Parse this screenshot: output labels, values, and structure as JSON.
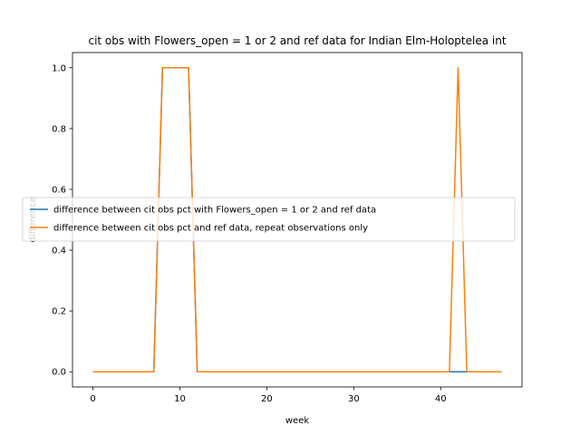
{
  "chart_data": {
    "type": "line",
    "title": "cit obs with Flowers_open = 1 or 2 and ref data for Indian Elm-Holoptelea int",
    "xlabel": "week",
    "ylabel": "difference",
    "xlim": [
      -2.35,
      49.35
    ],
    "ylim": [
      -0.05,
      1.05
    ],
    "xticks": [
      0,
      10,
      20,
      30,
      40
    ],
    "yticks": [
      0.0,
      0.2,
      0.4,
      0.6,
      0.8,
      1.0
    ],
    "xtick_labels": [
      "0",
      "10",
      "20",
      "30",
      "40"
    ],
    "ytick_labels": [
      "0.0",
      "0.2",
      "0.4",
      "0.6",
      "0.8",
      "1.0"
    ],
    "grid": false,
    "legend_position": "center-left",
    "series": [
      {
        "name": "difference between cit obs pct with Flowers_open = 1 or 2 and ref data",
        "color": "#1f77b4",
        "x": [
          0,
          1,
          2,
          3,
          4,
          5,
          6,
          7,
          8,
          9,
          10,
          11,
          12,
          13,
          14,
          15,
          16,
          17,
          18,
          19,
          20,
          21,
          22,
          23,
          24,
          25,
          26,
          27,
          28,
          29,
          30,
          31,
          32,
          33,
          34,
          35,
          36,
          37,
          38,
          39,
          40,
          41,
          42,
          43,
          44,
          45,
          46,
          47
        ],
        "values": [
          0,
          0,
          0,
          0,
          0,
          0,
          0,
          0,
          1,
          1,
          1,
          1,
          0,
          0,
          0,
          0,
          0,
          0,
          0,
          0,
          0,
          0,
          0,
          0,
          0,
          0,
          0,
          0,
          0,
          0,
          0,
          0,
          0,
          0,
          0,
          0,
          0,
          0,
          0,
          0,
          0,
          0,
          0,
          0,
          0,
          0,
          0,
          0
        ]
      },
      {
        "name": "difference between cit obs pct and ref data, repeat observations only",
        "color": "#ff7f0e",
        "x": [
          0,
          1,
          2,
          3,
          4,
          5,
          6,
          7,
          8,
          9,
          10,
          11,
          12,
          13,
          14,
          15,
          16,
          17,
          18,
          19,
          20,
          21,
          22,
          23,
          24,
          25,
          26,
          27,
          28,
          29,
          30,
          31,
          32,
          33,
          34,
          35,
          36,
          37,
          38,
          39,
          40,
          41,
          42,
          43,
          44,
          45,
          46,
          47
        ],
        "values": [
          0,
          0,
          0,
          0,
          0,
          0,
          0,
          0,
          1,
          1,
          1,
          1,
          0,
          0,
          0,
          0,
          0,
          0,
          0,
          0,
          0,
          0,
          0,
          0,
          0,
          0,
          0,
          0,
          0,
          0,
          0,
          0,
          0,
          0,
          0,
          0,
          0,
          0,
          0,
          0,
          0,
          0,
          1,
          0,
          0,
          0,
          0,
          0
        ]
      }
    ]
  }
}
